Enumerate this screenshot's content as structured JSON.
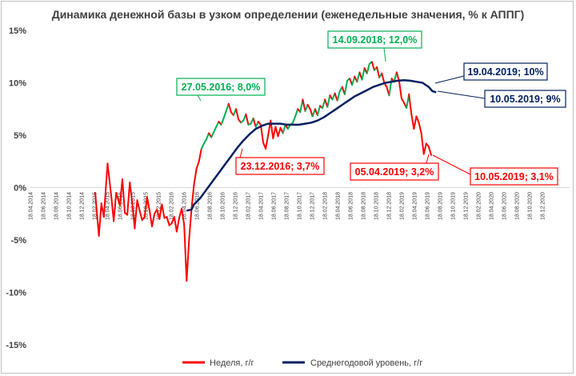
{
  "chart_data": {
    "type": "line",
    "title": "Динамика денежной базы в узком определении (еженедельные значения, % к АППГ)",
    "ylim": [
      -15,
      15
    ],
    "y_ticks": [
      "15%",
      "10%",
      "5%",
      "0%",
      "-5%",
      "-10%",
      "-15%"
    ],
    "y_tick_values": [
      15,
      10,
      5,
      0,
      -5,
      -10,
      -15
    ],
    "x_ticks": [
      "18.04.2014",
      "18.06.2014",
      "18.08.2014",
      "18.10.2014",
      "18.12.2014",
      "18.02.2015",
      "18.04.2015",
      "18.06.2015",
      "18.08.2015",
      "18.10.2015",
      "18.12.2015",
      "18.02.2016",
      "18.04.2016",
      "18.06.2016",
      "18.08.2016",
      "18.10.2016",
      "18.12.2016",
      "18.02.2017",
      "18.04.2017",
      "18.06.2017",
      "18.08.2017",
      "18.10.2017",
      "18.12.2017",
      "18.02.2018",
      "18.04.2018",
      "18.06.2018",
      "18.08.2018",
      "18.10.2018",
      "18.12.2018",
      "18.02.2019",
      "18.04.2019",
      "18.06.2019",
      "18.08.2019",
      "18.10.2019",
      "18.12.2019",
      "18.02.2020",
      "18.04.2020",
      "18.06.2020",
      "18.08.2020",
      "18.10.2020",
      "18.12.2020"
    ],
    "grid": false,
    "legend": "bottom",
    "series": [
      {
        "name": "Неделя, г/г",
        "color": "#ff0000",
        "color_rising": "#00b050",
        "points": [
          [
            0.0,
            -0.5
          ],
          [
            0.3,
            -4.6
          ],
          [
            0.5,
            -1.5
          ],
          [
            0.7,
            -2.8
          ],
          [
            1.0,
            2.3
          ],
          [
            1.3,
            -0.8
          ],
          [
            1.5,
            -3.2
          ],
          [
            1.7,
            -0.5
          ],
          [
            2.0,
            -1.7
          ],
          [
            2.2,
            0.8
          ],
          [
            2.4,
            -2.4
          ],
          [
            2.6,
            -2.6
          ],
          [
            2.8,
            0.5
          ],
          [
            3.0,
            -1.5
          ],
          [
            3.2,
            -3.9
          ],
          [
            3.4,
            -1.2
          ],
          [
            3.6,
            -2.2
          ],
          [
            3.8,
            -3.1
          ],
          [
            4.0,
            -2.8
          ],
          [
            4.2,
            -0.9
          ],
          [
            4.4,
            -2.2
          ],
          [
            4.6,
            -3.7
          ],
          [
            4.8,
            -2.5
          ],
          [
            5.0,
            -2.1
          ],
          [
            5.2,
            -3.0
          ],
          [
            5.4,
            -1.6
          ],
          [
            5.6,
            -2.9
          ],
          [
            5.8,
            -2.8
          ],
          [
            6.0,
            -3.6
          ],
          [
            6.2,
            -3.4
          ],
          [
            6.4,
            -2.8
          ],
          [
            6.6,
            -4.2
          ],
          [
            6.8,
            -2.9
          ],
          [
            7.0,
            -2.0
          ],
          [
            7.2,
            -3.5
          ],
          [
            7.4,
            -8.9
          ],
          [
            7.6,
            -5.0
          ],
          [
            7.8,
            -2.0
          ],
          [
            8.0,
            0.3
          ],
          [
            8.2,
            1.8
          ],
          [
            8.4,
            2.5
          ],
          [
            8.6,
            3.7
          ],
          [
            8.8,
            4.2
          ],
          [
            9.0,
            4.6
          ],
          [
            9.2,
            5.2
          ],
          [
            9.4,
            4.8
          ],
          [
            9.6,
            5.3
          ],
          [
            9.8,
            5.8
          ],
          [
            10.0,
            6.3
          ],
          [
            10.2,
            6.0
          ],
          [
            10.4,
            6.6
          ],
          [
            10.6,
            7.3
          ],
          [
            10.8,
            8.0
          ],
          [
            11.0,
            7.2
          ],
          [
            11.2,
            6.9
          ],
          [
            11.4,
            7.5
          ],
          [
            11.6,
            6.5
          ],
          [
            11.8,
            6.2
          ],
          [
            12.0,
            6.4
          ],
          [
            12.2,
            7.0
          ],
          [
            12.4,
            6.0
          ],
          [
            12.6,
            6.1
          ],
          [
            12.8,
            6.6
          ],
          [
            13.0,
            5.8
          ],
          [
            13.2,
            6.3
          ],
          [
            13.4,
            6.0
          ],
          [
            13.6,
            4.3
          ],
          [
            13.8,
            3.7
          ],
          [
            14.0,
            5.0
          ],
          [
            14.2,
            6.4
          ],
          [
            14.4,
            4.7
          ],
          [
            14.6,
            5.8
          ],
          [
            14.8,
            4.9
          ],
          [
            15.0,
            5.7
          ],
          [
            15.2,
            5.2
          ],
          [
            15.4,
            6.0
          ],
          [
            15.6,
            5.6
          ],
          [
            15.8,
            6.0
          ],
          [
            16.0,
            6.2
          ],
          [
            16.2,
            6.8
          ],
          [
            16.4,
            7.5
          ],
          [
            16.6,
            7.2
          ],
          [
            16.8,
            8.4
          ],
          [
            17.0,
            7.3
          ],
          [
            17.2,
            7.9
          ],
          [
            17.4,
            7.5
          ],
          [
            17.6,
            6.8
          ],
          [
            17.8,
            7.5
          ],
          [
            18.0,
            6.9
          ],
          [
            18.2,
            7.8
          ],
          [
            18.4,
            7.6
          ],
          [
            18.6,
            8.4
          ],
          [
            18.8,
            7.7
          ],
          [
            19.0,
            8.8
          ],
          [
            19.2,
            8.4
          ],
          [
            19.4,
            9.0
          ],
          [
            19.6,
            8.3
          ],
          [
            19.8,
            9.2
          ],
          [
            20.0,
            9.6
          ],
          [
            20.2,
            8.9
          ],
          [
            20.4,
            10.2
          ],
          [
            20.6,
            10.4
          ],
          [
            20.8,
            9.8
          ],
          [
            21.0,
            10.6
          ],
          [
            21.2,
            10.1
          ],
          [
            21.4,
            11.0
          ],
          [
            21.6,
            10.3
          ],
          [
            21.8,
            11.4
          ],
          [
            22.0,
            10.9
          ],
          [
            22.2,
            11.8
          ],
          [
            22.4,
            12.0
          ],
          [
            22.6,
            11.2
          ],
          [
            22.8,
            11.5
          ],
          [
            23.0,
            10.5
          ],
          [
            23.2,
            10.9
          ],
          [
            23.4,
            10.0
          ],
          [
            23.6,
            9.6
          ],
          [
            23.8,
            8.8
          ],
          [
            24.0,
            10.4
          ],
          [
            24.2,
            10.1
          ],
          [
            24.4,
            11.0
          ],
          [
            24.6,
            10.2
          ],
          [
            24.8,
            8.5
          ],
          [
            25.0,
            8.1
          ],
          [
            25.2,
            7.6
          ],
          [
            25.4,
            8.9
          ],
          [
            25.6,
            7.0
          ],
          [
            25.8,
            5.6
          ],
          [
            26.0,
            6.8
          ],
          [
            26.2,
            6.2
          ],
          [
            26.4,
            5.2
          ],
          [
            26.6,
            3.2
          ],
          [
            26.8,
            4.2
          ],
          [
            27.0,
            3.9
          ],
          [
            27.2,
            3.1
          ]
        ]
      },
      {
        "name": "Среднегодовой уровень, г/г",
        "color": "#002060",
        "points": [
          [
            7.4,
            -2.2
          ],
          [
            7.8,
            -2.1
          ],
          [
            8.0,
            -1.6
          ],
          [
            8.5,
            -1.0
          ],
          [
            9.0,
            -0.2
          ],
          [
            9.5,
            0.6
          ],
          [
            10.0,
            1.4
          ],
          [
            10.5,
            2.2
          ],
          [
            11.0,
            3.0
          ],
          [
            11.5,
            3.8
          ],
          [
            12.0,
            4.5
          ],
          [
            12.5,
            5.1
          ],
          [
            13.0,
            5.6
          ],
          [
            13.5,
            5.9
          ],
          [
            14.0,
            6.1
          ],
          [
            14.5,
            6.1
          ],
          [
            15.0,
            6.1
          ],
          [
            15.5,
            6.0
          ],
          [
            16.0,
            6.0
          ],
          [
            16.5,
            6.0
          ],
          [
            17.0,
            6.1
          ],
          [
            17.5,
            6.2
          ],
          [
            18.0,
            6.4
          ],
          [
            18.5,
            6.7
          ],
          [
            19.0,
            7.1
          ],
          [
            19.5,
            7.5
          ],
          [
            20.0,
            7.9
          ],
          [
            20.5,
            8.3
          ],
          [
            21.0,
            8.7
          ],
          [
            21.5,
            9.0
          ],
          [
            22.0,
            9.3
          ],
          [
            22.5,
            9.6
          ],
          [
            23.0,
            9.8
          ],
          [
            23.5,
            10.0
          ],
          [
            24.0,
            10.1
          ],
          [
            24.5,
            10.2
          ],
          [
            25.0,
            10.25
          ],
          [
            25.5,
            10.2
          ],
          [
            26.0,
            10.1
          ],
          [
            26.5,
            10.0
          ],
          [
            27.0,
            9.6
          ],
          [
            27.3,
            9.2
          ],
          [
            27.6,
            9.1
          ]
        ]
      }
    ],
    "annotations": [
      {
        "text": "27.05.2016; 8,0%",
        "color": "#00b050"
      },
      {
        "text": "23.12.2016; 3,7%",
        "color": "#ff0000"
      },
      {
        "text": "14.09.2018; 12,0%",
        "color": "#00b050"
      },
      {
        "text": "19.04.2019; 10%",
        "color": "#002060"
      },
      {
        "text": "10.05.2019; 9%",
        "color": "#002060"
      },
      {
        "text": "05.04.2019; 3,2%",
        "color": "#ff0000"
      },
      {
        "text": "10.05.2019; 3,1%",
        "color": "#ff0000"
      }
    ]
  }
}
